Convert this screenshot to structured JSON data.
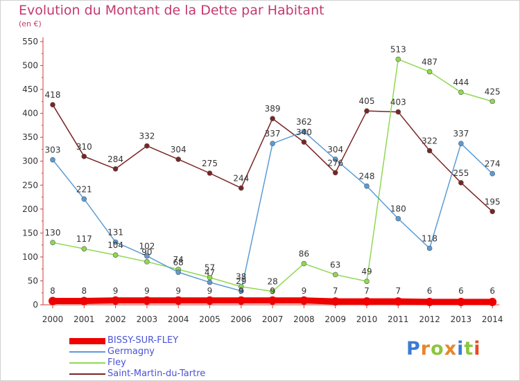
{
  "header": {
    "title": "Evolution du Montant de la Dette par Habitant",
    "subtitle": "(en €)"
  },
  "logo": {
    "text": "Proxiti",
    "letters": [
      "P",
      "r",
      "o",
      "x",
      "i",
      "t",
      "i"
    ]
  },
  "chart_data": {
    "type": "line",
    "title": "Evolution du Montant de la Dette par Habitant",
    "ylabel": "(en €)",
    "xlabel": "",
    "x": [
      "2000",
      "2001",
      "2002",
      "2003",
      "2004",
      "2005",
      "2006",
      "2007",
      "2008",
      "2009",
      "2010",
      "2011",
      "2012",
      "2013",
      "2014"
    ],
    "yticks": [
      0,
      50,
      100,
      150,
      200,
      250,
      300,
      350,
      400,
      450,
      500,
      550
    ],
    "ylim": [
      0,
      550
    ],
    "grid": false,
    "legend": "bottom-left",
    "series": [
      {
        "name": "BISSY-SUR-FLEY",
        "color": "#ee0000",
        "values": [
          8,
          8,
          9,
          9,
          9,
          9,
          9,
          9,
          9,
          7,
          7,
          7,
          6,
          6,
          6
        ]
      },
      {
        "name": "Germagny",
        "color": "#5b9bd5",
        "values": [
          303,
          221,
          131,
          102,
          68,
          47,
          29,
          337,
          362,
          304,
          248,
          180,
          118,
          337,
          274
        ]
      },
      {
        "name": "Fley",
        "color": "#8fd850",
        "values": [
          130,
          117,
          104,
          90,
          74,
          57,
          38,
          28,
          86,
          63,
          49,
          513,
          487,
          444,
          425
        ]
      },
      {
        "name": "Saint-Martin-du-Tartre",
        "color": "#7a2424",
        "values": [
          418,
          310,
          284,
          332,
          304,
          275,
          244,
          389,
          340,
          276,
          405,
          403,
          322,
          255,
          195
        ]
      }
    ]
  }
}
